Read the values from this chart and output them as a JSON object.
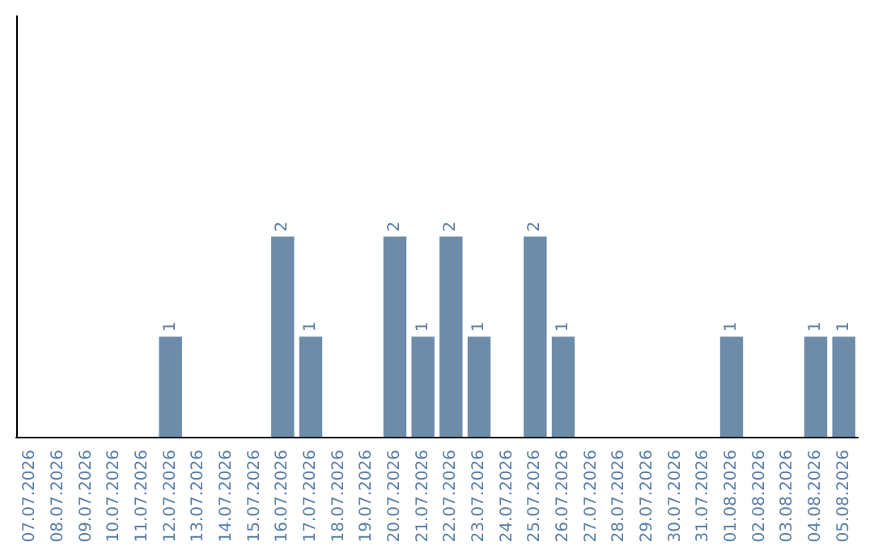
{
  "chart_data": {
    "type": "bar",
    "categories": [
      "07.07.2026",
      "08.07.2026",
      "09.07.2026",
      "10.07.2026",
      "11.07.2026",
      "12.07.2026",
      "13.07.2026",
      "14.07.2026",
      "15.07.2026",
      "16.07.2026",
      "17.07.2026",
      "18.07.2026",
      "19.07.2026",
      "20.07.2026",
      "21.07.2026",
      "22.07.2026",
      "23.07.2026",
      "24.07.2026",
      "25.07.2026",
      "26.07.2026",
      "27.07.2026",
      "28.07.2026",
      "29.07.2026",
      "30.07.2026",
      "31.07.2026",
      "01.08.2026",
      "02.08.2026",
      "03.08.2026",
      "04.08.2026",
      "05.08.2026"
    ],
    "values": [
      0,
      0,
      0,
      0,
      0,
      1,
      0,
      0,
      0,
      2,
      1,
      0,
      0,
      2,
      1,
      2,
      1,
      0,
      2,
      1,
      0,
      0,
      0,
      0,
      0,
      1,
      0,
      0,
      1,
      1
    ],
    "value_labels": [
      null,
      null,
      null,
      null,
      null,
      "1",
      null,
      null,
      null,
      "2",
      "1",
      null,
      null,
      "2",
      "1",
      "2",
      "1",
      null,
      "2",
      "1",
      null,
      null,
      null,
      null,
      null,
      "1",
      null,
      null,
      "1",
      "1"
    ],
    "color": "#6d8caa",
    "ylim": [
      0,
      4.2
    ],
    "tick_labels": "x",
    "grid": false
  }
}
